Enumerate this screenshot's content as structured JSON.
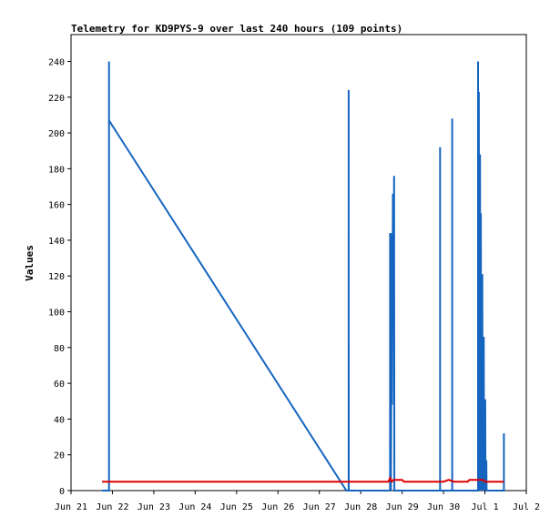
{
  "chart_data": {
    "type": "line",
    "title": "Telemetry for KD9PYS-9 over last 240 hours (109 points)",
    "ylabel": "Values",
    "xlabel": "",
    "ylim": [
      0,
      255
    ],
    "xlim": [
      "2024-06-21",
      "2024-07-02"
    ],
    "x_ticks": [
      {
        "x": "2024-06-21",
        "label": "Jun 21"
      },
      {
        "x": "2024-06-22",
        "label": "Jun 22"
      },
      {
        "x": "2024-06-23",
        "label": "Jun 23"
      },
      {
        "x": "2024-06-24",
        "label": "Jun 24"
      },
      {
        "x": "2024-06-25",
        "label": "Jun 25"
      },
      {
        "x": "2024-06-26",
        "label": "Jun 26"
      },
      {
        "x": "2024-06-27",
        "label": "Jun 27"
      },
      {
        "x": "2024-06-28",
        "label": "Jun 28"
      },
      {
        "x": "2024-06-29",
        "label": "Jun 29"
      },
      {
        "x": "2024-06-30",
        "label": "Jun 30"
      },
      {
        "x": "2024-07-01",
        "label": "Jul 1"
      },
      {
        "x": "2024-07-02",
        "label": "Jul 2"
      }
    ],
    "y_ticks": [
      0,
      20,
      40,
      60,
      80,
      100,
      120,
      140,
      160,
      180,
      200,
      220,
      240
    ],
    "grid": false,
    "series": [
      {
        "color": "#1565c0",
        "points": [
          [
            "2024-06-21T18:00",
            0
          ],
          [
            "2024-06-21T22:00",
            0
          ],
          [
            "2024-06-21T22:00",
            240
          ],
          [
            "2024-06-21T22:01",
            0
          ],
          [
            "2024-06-21T22:01",
            207
          ],
          [
            "2024-06-27T15:40",
            0
          ],
          [
            "2024-06-27T17:00",
            0
          ],
          [
            "2024-06-27T17:00",
            224
          ],
          [
            "2024-06-27T17:01",
            0
          ],
          [
            "2024-06-28T17:00",
            0
          ],
          [
            "2024-06-28T17:00",
            144
          ],
          [
            "2024-06-28T17:30",
            0
          ],
          [
            "2024-06-28T18:00",
            144
          ],
          [
            "2024-06-28T18:10",
            48
          ],
          [
            "2024-06-28T18:40",
            166
          ],
          [
            "2024-06-28T19:00",
            122
          ],
          [
            "2024-06-28T19:20",
            176
          ],
          [
            "2024-06-28T19:30",
            0
          ],
          [
            "2024-06-29T22:00",
            0
          ],
          [
            "2024-06-29T22:00",
            192
          ],
          [
            "2024-06-29T22:01",
            0
          ],
          [
            "2024-06-30T05:00",
            0
          ],
          [
            "2024-06-30T05:00",
            208
          ],
          [
            "2024-06-30T05:01",
            0
          ],
          [
            "2024-06-30T20:00",
            0
          ],
          [
            "2024-06-30T20:00",
            240
          ],
          [
            "2024-06-30T20:10",
            0
          ],
          [
            "2024-06-30T20:30",
            223
          ],
          [
            "2024-06-30T20:40",
            0
          ],
          [
            "2024-06-30T21:10",
            188
          ],
          [
            "2024-06-30T21:20",
            0
          ],
          [
            "2024-06-30T21:40",
            155
          ],
          [
            "2024-06-30T21:50",
            0
          ],
          [
            "2024-06-30T22:30",
            121
          ],
          [
            "2024-06-30T22:40",
            0
          ],
          [
            "2024-06-30T23:20",
            86
          ],
          [
            "2024-06-30T23:30",
            0
          ],
          [
            "2024-07-01T00:10",
            51
          ],
          [
            "2024-07-01T00:20",
            0
          ],
          [
            "2024-07-01T00:50",
            17
          ],
          [
            "2024-07-01T01:00",
            0
          ],
          [
            "2024-07-01T11:00",
            0
          ],
          [
            "2024-07-01T11:00",
            32
          ],
          [
            "2024-07-01T11:01",
            0
          ]
        ]
      },
      {
        "color": "#e00000",
        "points": [
          [
            "2024-06-21T18:00",
            5
          ],
          [
            "2024-06-28T16:00",
            5
          ],
          [
            "2024-06-28T17:00",
            7
          ],
          [
            "2024-06-28T18:00",
            5
          ],
          [
            "2024-06-28T19:00",
            6
          ],
          [
            "2024-06-29T00:00",
            6
          ],
          [
            "2024-06-29T01:00",
            5
          ],
          [
            "2024-06-30T00:00",
            5
          ],
          [
            "2024-06-30T03:00",
            6
          ],
          [
            "2024-06-30T06:00",
            5
          ],
          [
            "2024-06-30T14:00",
            5
          ],
          [
            "2024-06-30T15:00",
            6
          ],
          [
            "2024-06-30T23:00",
            6
          ],
          [
            "2024-07-01T00:00",
            5
          ],
          [
            "2024-07-01T11:00",
            5
          ]
        ]
      }
    ]
  }
}
